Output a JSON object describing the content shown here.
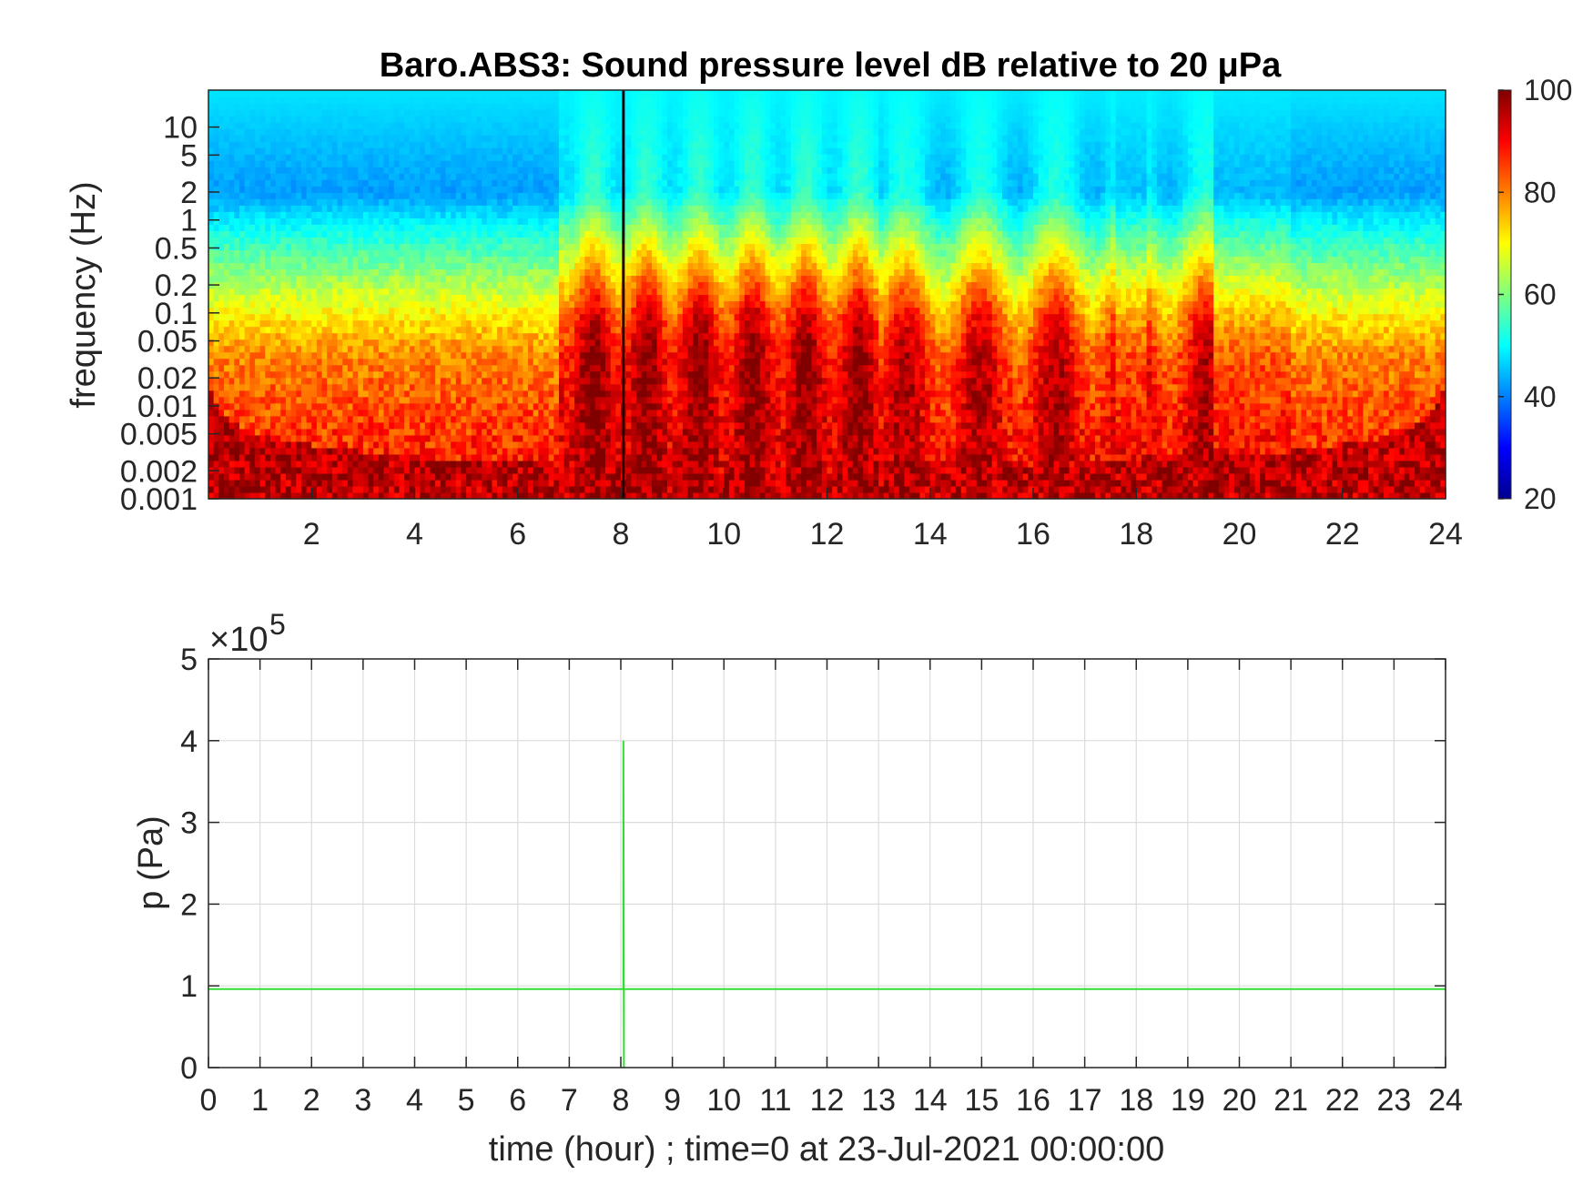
{
  "chart_data": [
    {
      "type": "heatmap",
      "title": "Baro.ABS3: Sound pressure level dB relative to 20 μPa",
      "xlabel": "",
      "ylabel": "frequency (Hz)",
      "xlim": [
        0,
        24
      ],
      "ylim": [
        0.001,
        25
      ],
      "yscale": "log",
      "x_ticks": [
        "2",
        "4",
        "6",
        "8",
        "10",
        "12",
        "14",
        "16",
        "18",
        "20",
        "22",
        "24"
      ],
      "y_ticks": [
        "0.001",
        "0.002",
        "0.005",
        "0.01",
        "0.02",
        "0.05",
        "0.1",
        "0.2",
        "0.5",
        "1",
        "2",
        "5",
        "10"
      ],
      "colorbar": {
        "colormap": "jet",
        "range": [
          20,
          100
        ],
        "ticks": [
          "20",
          "40",
          "60",
          "80",
          "100"
        ]
      },
      "features": {
        "transient_hour": 8.05,
        "active_bands_hours": [
          [
            6.8,
            13.0
          ],
          [
            13.0,
            19.5
          ]
        ],
        "low_frequency_level_db": 90,
        "high_frequency_level_db": 45
      }
    },
    {
      "type": "line",
      "title": "",
      "xlabel": "time (hour) ; time=0 at 23-Jul-2021 00:00:00",
      "ylabel": "p (Pa)",
      "y_exponent_label": "×10",
      "y_exponent": "5",
      "xlim": [
        0,
        24
      ],
      "ylim": [
        0,
        500000
      ],
      "grid": true,
      "x_ticks": [
        "0",
        "1",
        "2",
        "3",
        "4",
        "5",
        "6",
        "7",
        "8",
        "9",
        "10",
        "11",
        "12",
        "13",
        "14",
        "15",
        "16",
        "17",
        "18",
        "19",
        "20",
        "21",
        "22",
        "23",
        "24"
      ],
      "y_ticks": [
        "0",
        "1",
        "2",
        "3",
        "4",
        "5"
      ],
      "series": [
        {
          "color": "#33dd33",
          "x": [
            0,
            8.05,
            8.05,
            8.06,
            8.06,
            24
          ],
          "y": [
            96000,
            96000,
            400000,
            0,
            96000,
            96000
          ]
        }
      ]
    }
  ]
}
